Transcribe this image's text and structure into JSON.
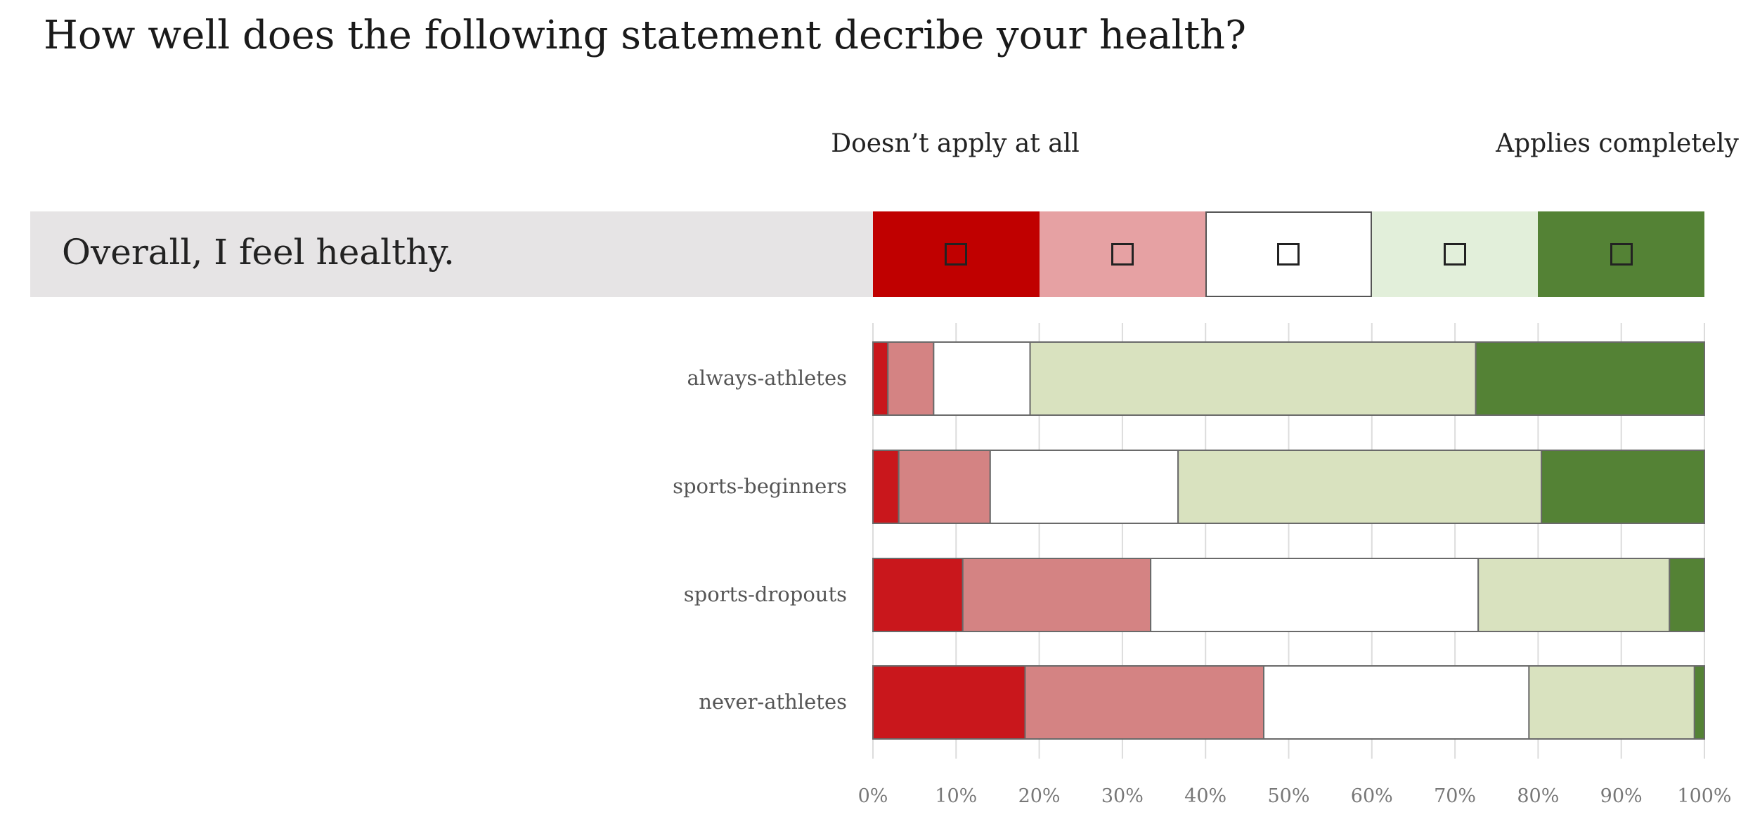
{
  "title": "How well does the following statement decribe your health?",
  "statement": "Overall, I feel healthy.",
  "scale_labels": {
    "left": "Doesn’t apply at all",
    "right": "Applies completely"
  },
  "colors": {
    "header": [
      "#c00000",
      "#e6a1a3",
      "#ffffff",
      "#e2efda",
      "#548235"
    ],
    "bars": [
      "#c9171c",
      "#d48383",
      "#ffffff",
      "#d9e2bf",
      "#548235"
    ]
  },
  "chart_data": {
    "type": "bar",
    "orientation": "horizontal",
    "stacked": true,
    "categories": [
      "always-athletes",
      "sports-beginners",
      "sports-dropouts",
      "never-athletes"
    ],
    "series": [
      {
        "values": [
          1.8,
          3.1,
          10.8,
          18.3
        ]
      },
      {
        "values": [
          5.5,
          11.0,
          22.6,
          28.7
        ]
      },
      {
        "values": [
          11.6,
          22.6,
          39.4,
          31.9
        ]
      },
      {
        "values": [
          53.6,
          43.7,
          23.0,
          19.9
        ]
      },
      {
        "values": [
          27.5,
          19.6,
          4.2,
          1.2
        ]
      }
    ],
    "xlim": [
      0,
      100
    ],
    "xticks": [
      "0%",
      "10%",
      "20%",
      "30%",
      "40%",
      "50%",
      "60%",
      "70%",
      "80%",
      "90%",
      "100%"
    ],
    "grid": true
  }
}
